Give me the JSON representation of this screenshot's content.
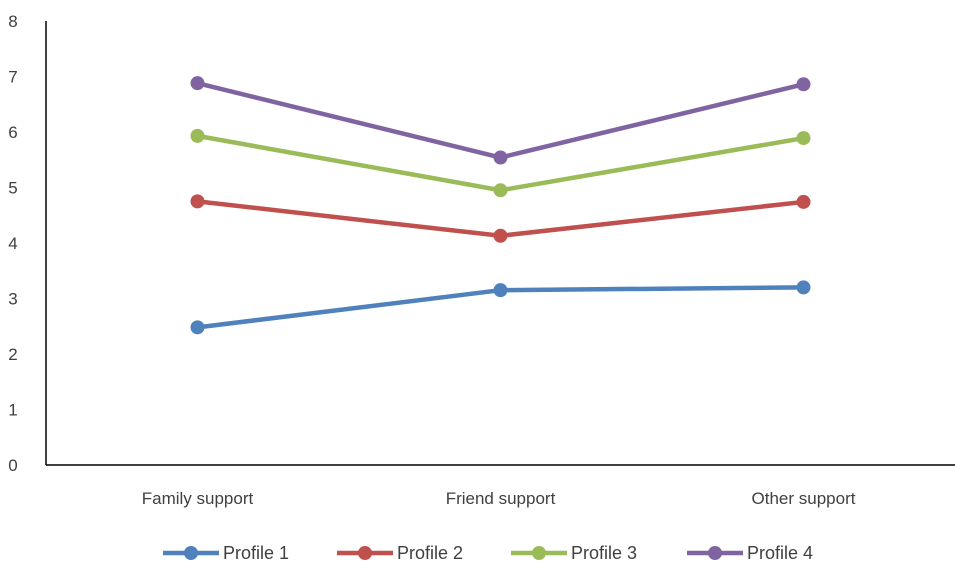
{
  "chart_data": {
    "type": "line",
    "categories": [
      "Family support",
      "Friend support",
      "Other support"
    ],
    "series": [
      {
        "name": "Profile 1",
        "color": "#4F81BD",
        "values": [
          2.48,
          3.15,
          3.2
        ]
      },
      {
        "name": "Profile 2",
        "color": "#C0504D",
        "values": [
          4.75,
          4.13,
          4.74
        ]
      },
      {
        "name": "Profile 3",
        "color": "#9BBB59",
        "values": [
          5.93,
          4.95,
          5.89
        ]
      },
      {
        "name": "Profile 4",
        "color": "#8064A2",
        "values": [
          6.88,
          5.54,
          6.86
        ]
      }
    ],
    "ylim": [
      0,
      8
    ],
    "yticks": [
      "0",
      "1",
      "2",
      "3",
      "4",
      "5",
      "6",
      "7",
      "8"
    ],
    "grid": false,
    "legend_position": "bottom"
  }
}
